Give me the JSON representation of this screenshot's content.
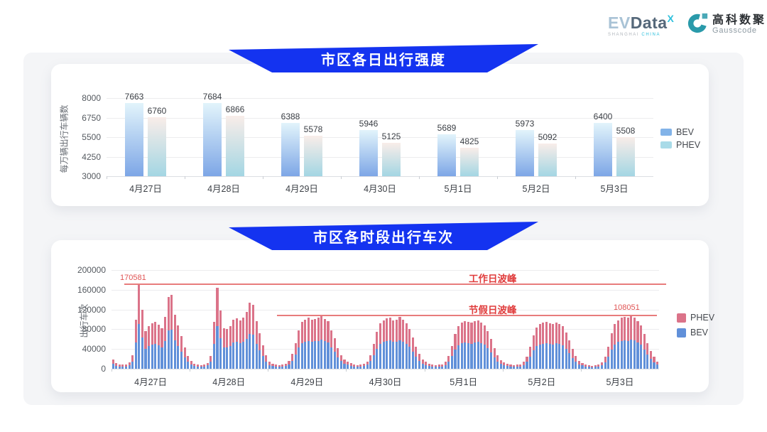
{
  "header": {
    "evdata": {
      "ev": "EV",
      "data": "Data",
      "sup": "X",
      "sub_left": "SHANGHAI ",
      "sub_right": "CHINA"
    },
    "gausscode": {
      "cn": "高科数聚",
      "en": "Gausscode"
    }
  },
  "colors": {
    "banner_blue": "#1433f0",
    "panel_gray": "#f4f5f7",
    "bev_bar_top": "#e2f4fb",
    "bev_bar_bottom": "#7da6e6",
    "phev_bar_top": "#f9ede9",
    "phev_bar_bottom": "#a3d6e3",
    "phev_stack": "#db7389",
    "bev_stack": "#6190d9",
    "annotation_red": "#e03c3c"
  },
  "chart_data": [
    {
      "type": "bar",
      "title": "市区各日出行强度",
      "ylabel": "每万辆出行车辆数",
      "ylim": [
        3000,
        8000
      ],
      "yticks": [
        3000,
        4250,
        5500,
        6750,
        8000
      ],
      "grid": true,
      "legend_position": "right",
      "categories": [
        "4月27日",
        "4月28日",
        "4月29日",
        "4月30日",
        "5月1日",
        "5月2日",
        "5月3日"
      ],
      "series": [
        {
          "name": "BEV",
          "values": [
            7663,
            7684,
            6388,
            5946,
            5689,
            5973,
            6400
          ]
        },
        {
          "name": "PHEV",
          "values": [
            6760,
            6866,
            5578,
            5125,
            4825,
            5092,
            5508
          ]
        }
      ]
    },
    {
      "type": "bar",
      "stacked": true,
      "title": "市区各时段出行车次",
      "ylabel": "出行车次",
      "ylim": [
        0,
        200000
      ],
      "yticks": [
        0,
        40000,
        80000,
        120000,
        160000,
        200000
      ],
      "grid": true,
      "legend_position": "right",
      "legend": [
        "PHEV",
        "BEV"
      ],
      "annotations": {
        "workday_peak": {
          "value": 170581,
          "value_label": "170581",
          "label": "工作日波峰"
        },
        "holiday_peak": {
          "value": 108051,
          "value_label": "108051",
          "label": "节假日波峰"
        }
      },
      "days": [
        {
          "date": "4月27日",
          "bev": [
            9500,
            6000,
            5000,
            4500,
            5000,
            7000,
            15000,
            53000,
            90581,
            63000,
            40500,
            45500,
            49000,
            50500,
            47000,
            43500,
            55500,
            77500,
            79000,
            58000,
            46500,
            35000,
            23000,
            14000
          ],
          "phev": [
            8500,
            5000,
            4000,
            3500,
            4000,
            6000,
            13000,
            47000,
            80000,
            56000,
            35500,
            40500,
            43000,
            44500,
            42000,
            38500,
            49500,
            68500,
            70000,
            51000,
            41500,
            31000,
            20000,
            12000
          ]
        },
        {
          "date": "4月28日",
          "bev": [
            8500,
            5500,
            4500,
            4000,
            5000,
            6500,
            14000,
            50500,
            87000,
            62500,
            43500,
            43000,
            46000,
            53000,
            54000,
            52000,
            54500,
            61000,
            71000,
            69000,
            51000,
            38000,
            25500,
            14500
          ],
          "phev": [
            7500,
            4500,
            3500,
            3000,
            4000,
            5500,
            12000,
            44500,
            77000,
            55500,
            38500,
            38000,
            41000,
            47000,
            48000,
            46000,
            48500,
            54000,
            63000,
            61000,
            45000,
            34000,
            22500,
            12500
          ]
        },
        {
          "date": "4月29日",
          "bev": [
            7500,
            5500,
            4500,
            4000,
            4500,
            5500,
            9000,
            16500,
            28500,
            43000,
            52000,
            55000,
            56500,
            54500,
            55500,
            56500,
            59000,
            55500,
            53000,
            43000,
            34000,
            23000,
            15500,
            10000
          ],
          "phev": [
            6500,
            4500,
            3500,
            3000,
            3500,
            4500,
            7000,
            13500,
            23500,
            35000,
            43000,
            45000,
            46500,
            44500,
            45500,
            46500,
            48000,
            45500,
            43000,
            35000,
            28000,
            19000,
            12500,
            8000
          ]
        },
        {
          "date": "4月30日",
          "bev": [
            8000,
            6000,
            4500,
            4000,
            4500,
            5500,
            8000,
            15500,
            27500,
            41000,
            50500,
            54000,
            56000,
            57000,
            54000,
            55000,
            58000,
            55000,
            50500,
            44000,
            35000,
            24500,
            16500,
            10500
          ],
          "phev": [
            7000,
            5000,
            3500,
            3000,
            3500,
            4500,
            7000,
            12500,
            22500,
            34000,
            41500,
            44000,
            46000,
            47000,
            44000,
            45000,
            47000,
            45000,
            41500,
            36000,
            29000,
            20500,
            13500,
            8500
          ]
        },
        {
          "date": "5月1日",
          "bev": [
            7500,
            5500,
            4500,
            4000,
            4500,
            5000,
            7500,
            14500,
            25500,
            38500,
            47500,
            51500,
            53500,
            52000,
            51000,
            53000,
            54000,
            51500,
            48500,
            42000,
            33000,
            23000,
            15000,
            9500
          ],
          "phev": [
            6500,
            4500,
            3500,
            3000,
            3500,
            4000,
            6500,
            11500,
            20500,
            31500,
            38500,
            42500,
            43500,
            43000,
            42000,
            43000,
            44000,
            42500,
            39500,
            34000,
            27000,
            19000,
            12000,
            7500
          ]
        },
        {
          "date": "5月2日",
          "bev": [
            7000,
            5500,
            4500,
            4000,
            4500,
            5000,
            7500,
            14000,
            24000,
            37500,
            46000,
            49500,
            51000,
            52000,
            50500,
            49500,
            51500,
            50000,
            47500,
            40500,
            32000,
            22000,
            14500,
            9000
          ],
          "phev": [
            6000,
            4500,
            3500,
            3000,
            3500,
            4000,
            6500,
            11000,
            20000,
            30500,
            38000,
            40500,
            42000,
            43000,
            41500,
            40500,
            42500,
            41000,
            38500,
            33500,
            26000,
            18000,
            11500,
            7000
          ]
        },
        {
          "date": "5月3日",
          "bev": [
            6500,
            5000,
            4000,
            3500,
            4000,
            5000,
            7000,
            13000,
            25000,
            39500,
            49500,
            54000,
            56500,
            58000,
            56500,
            59051,
            57000,
            53500,
            48500,
            38500,
            28500,
            20000,
            13000,
            8500
          ],
          "phev": [
            5500,
            4000,
            3000,
            2500,
            3000,
            4000,
            6000,
            11000,
            20000,
            32500,
            40500,
            44000,
            46500,
            47000,
            46500,
            49000,
            47000,
            43500,
            39500,
            31500,
            23500,
            16000,
            11000,
            6500
          ]
        }
      ]
    }
  ]
}
